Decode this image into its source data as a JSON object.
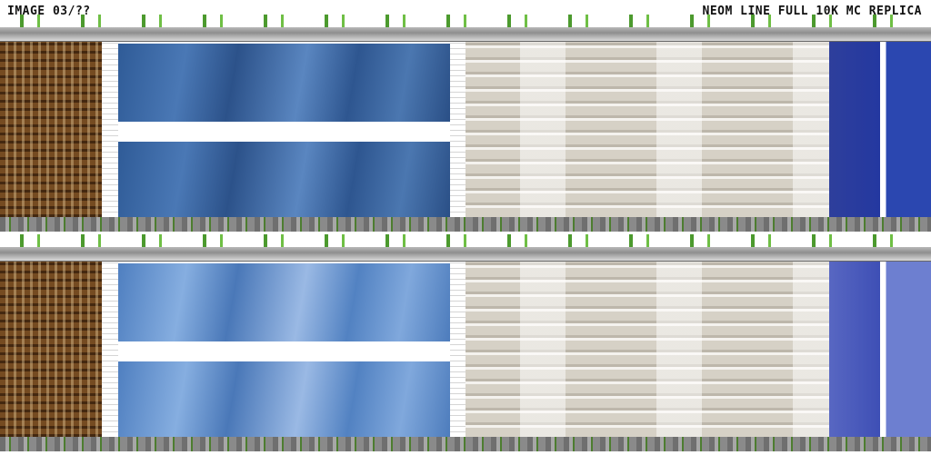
{
  "header": {
    "left_label": "IMAGE 03/??",
    "right_label": "NEOM LINE FULL 10K MC REPLICA"
  },
  "colors": {
    "glass_blue": "#2f5b97",
    "glass_light": "#86aee0",
    "terrace_beige": "#d6d1c6",
    "tower_brown": "#a2804f",
    "navy": "#2438a0"
  }
}
